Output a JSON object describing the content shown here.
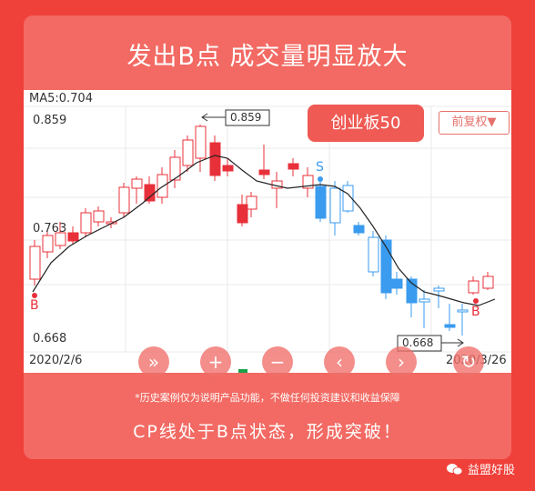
{
  "headline": "发出B点    成交量明显放大",
  "chart": {
    "ma_label": "MA5:0.704",
    "board_label": "创业板50",
    "adjust_label": "前复权▼",
    "y_top": "0.859",
    "y_mid": "0.763",
    "y_bottom": "0.668",
    "high_callout": "0.859",
    "low_callout": "0.668",
    "date_start": "2020/2/6",
    "date_end": "2020/3/26",
    "signals": {
      "buy": "B",
      "sell": "S"
    },
    "up_color": "#e8303a",
    "down_color": "#3a9bef"
  },
  "controls": [
    "fast-forward-icon",
    "plus-icon",
    "minus-icon",
    "left-arrow-icon",
    "right-arrow-icon",
    "refresh-icon"
  ],
  "disclaimer": "*历史案例仅为说明产品功能，不做任何投资建议和收益保障",
  "conclusion": "CP线处于B点状态，形成突破！",
  "brand": "益盟好股"
}
